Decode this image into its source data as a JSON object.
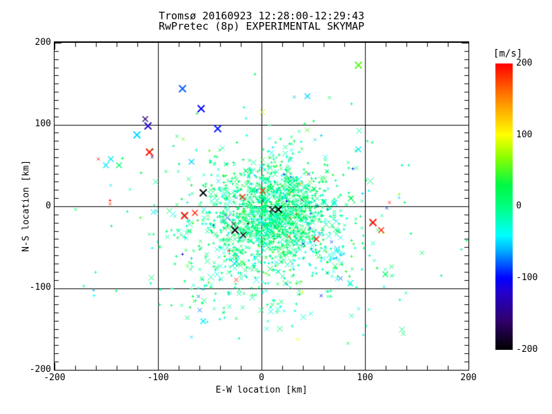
{
  "chart_data": {
    "type": "scatter",
    "title": "Tromsø 20160923 12:28:00-12:29:43",
    "subtitle": "RwPretec (8p) EXPERIMENTAL SKYMAP",
    "xlabel": "E-W location [km]",
    "ylabel": "N-S location [km]",
    "xlim": [
      -200,
      200
    ],
    "ylim": [
      -200,
      200
    ],
    "grid_values": [
      -100,
      0,
      100
    ],
    "x_tick_labels": [
      "-200",
      "-100",
      "0",
      "100",
      "200"
    ],
    "y_tick_labels": [
      "200",
      "100",
      "0",
      "-100",
      "-200"
    ],
    "x_minor_step": 20,
    "y_minor_step": 10,
    "grid_on": true,
    "colorbar": {
      "unit": "[m/s]",
      "range": [
        -200,
        200
      ],
      "tick_labels": [
        "200",
        "100",
        "0",
        "-100",
        "-200"
      ],
      "tick_values": [
        200,
        100,
        0,
        -100,
        -200
      ],
      "stops": [
        [
          -200,
          "#000000"
        ],
        [
          -160,
          "#30006a"
        ],
        [
          -120,
          "#2400cc"
        ],
        [
          -100,
          "#0000ff"
        ],
        [
          -60,
          "#00b4ff"
        ],
        [
          -40,
          "#00ffff"
        ],
        [
          0,
          "#00ff80"
        ],
        [
          30,
          "#00f845"
        ],
        [
          70,
          "#90ff00"
        ],
        [
          100,
          "#ffff00"
        ],
        [
          150,
          "#ff8800"
        ],
        [
          200,
          "#ff0000"
        ]
      ]
    },
    "scatter_model": {
      "seed": 20160923,
      "anomaly_rate": 0.018,
      "clusters": [
        {
          "n": 850,
          "cx": 14,
          "cy": -4,
          "sx": 26,
          "sy": 28,
          "v_mean": 4,
          "v_sd": 17
        },
        {
          "n": 620,
          "cx": 4,
          "cy": -30,
          "sx": 42,
          "sy": 38,
          "v_mean": 0,
          "v_sd": 24
        },
        {
          "n": 300,
          "cx": 2,
          "cy": -8,
          "sx": 62,
          "sy": 52,
          "v_mean": -6,
          "v_sd": 32
        },
        {
          "n": 28,
          "cx": 70,
          "cy": -60,
          "sx": 10,
          "sy": 18,
          "v_mean": -40,
          "v_sd": 15
        },
        {
          "n": 55,
          "cx": -5,
          "cy": -112,
          "sx": 58,
          "sy": 22,
          "v_mean": -5,
          "v_sd": 25
        }
      ]
    },
    "outlier_points": [
      {
        "x": 93,
        "y": 173,
        "v": 55,
        "m": "x",
        "s": 5
      },
      {
        "x": -77,
        "y": 144,
        "v": -80,
        "m": "x",
        "s": 5
      },
      {
        "x": -59,
        "y": 120,
        "v": -100,
        "m": "x",
        "s": 5
      },
      {
        "x": -43,
        "y": 95,
        "v": -95,
        "m": "x",
        "s": 5
      },
      {
        "x": -113,
        "y": 107,
        "v": -155,
        "m": "x",
        "s": 4
      },
      {
        "x": -110,
        "y": 99,
        "v": -120,
        "m": "x",
        "s": 5
      },
      {
        "x": -121,
        "y": 88,
        "v": -50,
        "m": "x",
        "s": 5
      },
      {
        "x": 44,
        "y": 135,
        "v": -50,
        "m": "x",
        "s": 4
      },
      {
        "x": -7,
        "y": 162,
        "v": 10,
        "m": "plus",
        "s": 2
      },
      {
        "x": -57,
        "y": 17,
        "v": -195,
        "m": "x",
        "s": 5
      },
      {
        "x": -26,
        "y": -29,
        "v": -195,
        "m": "x",
        "s": 5
      },
      {
        "x": -18,
        "y": -35,
        "v": -195,
        "m": "x",
        "s": 4
      },
      {
        "x": 10,
        "y": -3,
        "v": -195,
        "m": "x",
        "s": 4
      },
      {
        "x": 16,
        "y": -3,
        "v": -195,
        "m": "x",
        "s": 5
      },
      {
        "x": -109,
        "y": 67,
        "v": 195,
        "m": "x",
        "s": 5
      },
      {
        "x": -19,
        "y": 12,
        "v": 190,
        "m": "x",
        "s": 4
      },
      {
        "x": 1,
        "y": 19,
        "v": 185,
        "m": "x",
        "s": 4
      },
      {
        "x": -75,
        "y": -11,
        "v": 195,
        "m": "x",
        "s": 5
      },
      {
        "x": -65,
        "y": -8,
        "v": 190,
        "m": "x",
        "s": 4
      },
      {
        "x": -147,
        "y": 8,
        "v": 190,
        "m": "plus",
        "s": 2
      },
      {
        "x": -147,
        "y": 3,
        "v": 185,
        "m": "x",
        "s": 2
      },
      {
        "x": 107,
        "y": -19,
        "v": 195,
        "m": "x",
        "s": 5
      },
      {
        "x": 115,
        "y": -29,
        "v": 190,
        "m": "x",
        "s": 4
      },
      {
        "x": 123,
        "y": 5,
        "v": 190,
        "m": "x",
        "s": 2
      },
      {
        "x": 26,
        "y": -36,
        "v": 190,
        "m": "x",
        "s": 3
      },
      {
        "x": -32,
        "y": -54,
        "v": 185,
        "m": "x",
        "s": 2
      },
      {
        "x": 53,
        "y": -40,
        "v": 190,
        "m": "x",
        "s": 4
      },
      {
        "x": -146,
        "y": 58,
        "v": -45,
        "m": "x",
        "s": 4
      },
      {
        "x": -151,
        "y": 51,
        "v": -45,
        "m": "x",
        "s": 4
      },
      {
        "x": -138,
        "y": 51,
        "v": 5,
        "m": "x",
        "s": 4
      },
      {
        "x": -135,
        "y": 59,
        "v": 30,
        "m": "plus",
        "s": 2
      },
      {
        "x": -158,
        "y": 58,
        "v": 195,
        "m": "x",
        "s": 2
      },
      {
        "x": -106,
        "y": 61,
        "v": -160,
        "m": "x",
        "s": 2
      },
      {
        "x": -68,
        "y": 55,
        "v": -50,
        "m": "x",
        "s": 4
      },
      {
        "x": 86,
        "y": 10,
        "v": 25,
        "m": "x",
        "s": 4
      },
      {
        "x": 70,
        "y": 4,
        "v": -40,
        "m": "x",
        "s": 4
      },
      {
        "x": 101,
        "y": 32,
        "v": 20,
        "m": "plus",
        "s": 2
      },
      {
        "x": 198,
        "y": -41,
        "v": 15,
        "m": "plus",
        "s": 2
      },
      {
        "x": 93,
        "y": 70,
        "v": -45,
        "m": "x",
        "s": 4
      },
      {
        "x": 50,
        "y": 105,
        "v": 10,
        "m": "plus",
        "s": 2
      },
      {
        "x": 41,
        "y": 101,
        "v": 15,
        "m": "plus",
        "s": 2
      },
      {
        "x": 18,
        "y": 83,
        "v": 20,
        "m": "plus",
        "s": 2
      },
      {
        "x": -180,
        "y": -3,
        "v": 15,
        "m": "x",
        "s": 2
      },
      {
        "x": -162,
        "y": -109,
        "v": -40,
        "m": "plus",
        "s": 2
      },
      {
        "x": -57,
        "y": -140,
        "v": -45,
        "m": "x",
        "s": 4
      },
      {
        "x": -99,
        "y": -120,
        "v": 10,
        "m": "plus",
        "s": 2
      },
      {
        "x": 29,
        "y": -146,
        "v": -20,
        "m": "plus",
        "s": 2
      },
      {
        "x": 39,
        "y": -105,
        "v": 85,
        "m": "plus",
        "s": 2
      },
      {
        "x": 57,
        "y": -109,
        "v": -100,
        "m": "x",
        "s": 2
      },
      {
        "x": -77,
        "y": -58,
        "v": -110,
        "m": "plus",
        "s": 2
      },
      {
        "x": 21,
        "y": 40,
        "v": -90,
        "m": "plus",
        "s": 2
      },
      {
        "x": 45,
        "y": 40,
        "v": -85,
        "m": "x",
        "s": 2
      },
      {
        "x": 119,
        "y": -83,
        "v": 10,
        "m": "x",
        "s": 4
      },
      {
        "x": 85,
        "y": -94,
        "v": -30,
        "m": "x",
        "s": 4
      },
      {
        "x": 37,
        "y": 28,
        "v": 140,
        "m": "x",
        "s": 2
      },
      {
        "x": 98,
        "y": -157,
        "v": -35,
        "m": "plus",
        "s": 2
      }
    ]
  }
}
